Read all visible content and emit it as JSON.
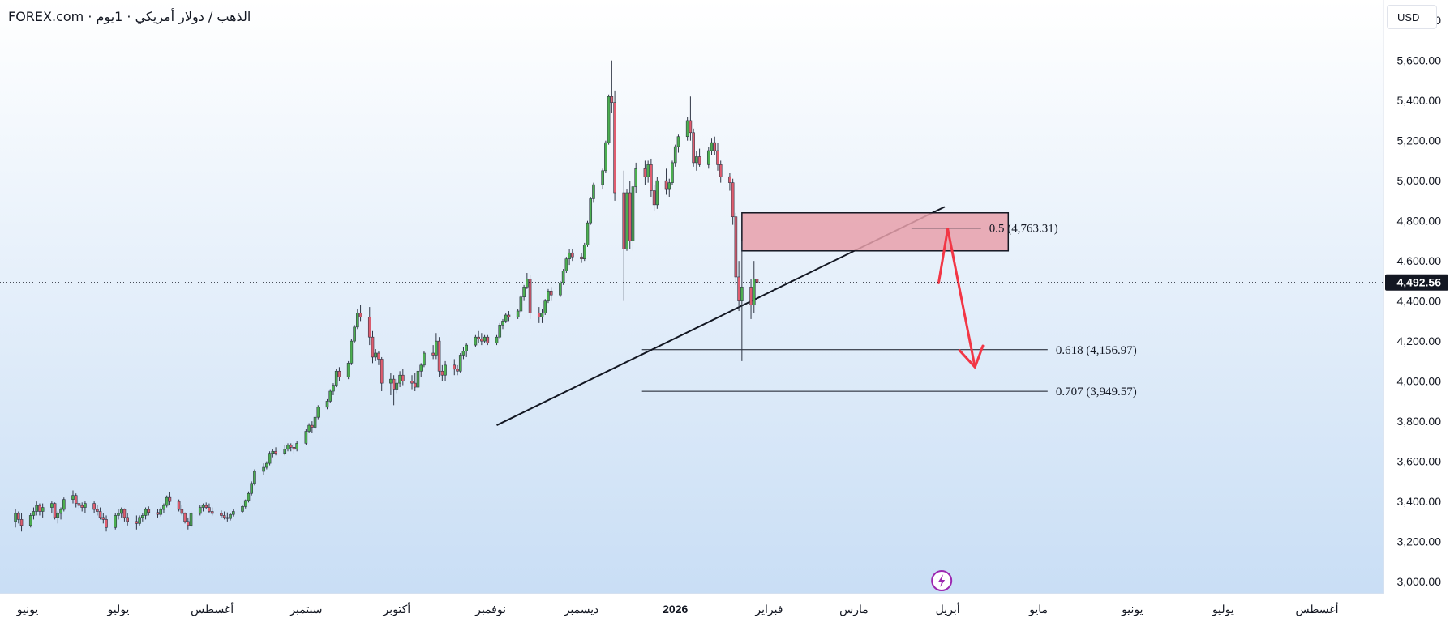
{
  "header": {
    "brand": "FOREX.com",
    "separator": " · ",
    "instrument": "الذهب / دولار أمريكي · 1يوم"
  },
  "currency_button": {
    "label": "USD"
  },
  "colors": {
    "up": "#4caf50",
    "down": "#e05d6f",
    "wick": "#2f3645",
    "zone_fill": "#e8a0aa",
    "arrow": "#f23645",
    "event_icon": "#9c27b0",
    "last_price_bg": "#131722"
  },
  "chart_data": {
    "type": "candlestick",
    "currency": "USD",
    "ylim": [
      2960,
      5720
    ],
    "y_ticks": [
      3000,
      3200,
      3400,
      3600,
      3800,
      4000,
      4200,
      4400,
      4600,
      4800,
      5000,
      5200,
      5400,
      5600
    ],
    "y_tick_labels": [
      "3,000.00",
      "3,200.00",
      "3,400.00",
      "3,600.00",
      "3,800.00",
      "4,000.00",
      "4,200.00",
      "4,400.00",
      "4,600.00",
      "4,800.00",
      "5,000.00",
      "5,200.00",
      "5,400.00",
      "5,600.00"
    ],
    "top_partial_tick": {
      "value": 5800,
      "label": "5,800.00"
    },
    "x_labels": [
      {
        "text": "يونيو",
        "date": "2025-06-01"
      },
      {
        "text": "يوليو",
        "date": "2025-07-01"
      },
      {
        "text": "أغسطس",
        "date": "2025-08-01"
      },
      {
        "text": "سبتمبر",
        "date": "2025-09-01"
      },
      {
        "text": "أكتوبر",
        "date": "2025-10-01"
      },
      {
        "text": "نوفمبر",
        "date": "2025-11-01"
      },
      {
        "text": "ديسمبر",
        "date": "2025-12-01"
      },
      {
        "text": "2026",
        "date": "2026-01-01",
        "bold": true
      },
      {
        "text": "فبراير",
        "date": "2026-02-01"
      },
      {
        "text": "مارس",
        "date": "2026-03-01"
      },
      {
        "text": "أبريل",
        "date": "2026-04-01"
      },
      {
        "text": "مايو",
        "date": "2026-05-01"
      },
      {
        "text": "يونيو",
        "date": "2026-06-01"
      },
      {
        "text": "يوليو",
        "date": "2026-07-01"
      },
      {
        "text": "أغسطس",
        "date": "2026-08-01"
      }
    ],
    "last_price": {
      "value": 4492.56,
      "label": "4,492.56"
    },
    "candles_start": "2025-05-28",
    "candles": [
      [
        3300,
        3360,
        3270,
        3340
      ],
      [
        3340,
        3350,
        3290,
        3310
      ],
      [
        3310,
        3340,
        3250,
        3280
      ],
      [
        3280,
        3340,
        3270,
        3330
      ],
      [
        3330,
        3370,
        3310,
        3350
      ],
      [
        3350,
        3400,
        3330,
        3380
      ],
      [
        3380,
        3390,
        3330,
        3350
      ],
      [
        3350,
        3390,
        3320,
        3370
      ],
      [
        3370,
        3400,
        3340,
        3390
      ],
      [
        3390,
        3395,
        3310,
        3320
      ],
      [
        3320,
        3350,
        3290,
        3340
      ],
      [
        3340,
        3370,
        3310,
        3360
      ],
      [
        3360,
        3420,
        3350,
        3410
      ],
      [
        3410,
        3455,
        3390,
        3430
      ],
      [
        3430,
        3440,
        3370,
        3390
      ],
      [
        3390,
        3400,
        3360,
        3380
      ],
      [
        3380,
        3395,
        3350,
        3370
      ],
      [
        3370,
        3400,
        3340,
        3390
      ],
      [
        3390,
        3400,
        3340,
        3360
      ],
      [
        3360,
        3380,
        3330,
        3350
      ],
      [
        3350,
        3370,
        3310,
        3320
      ],
      [
        3320,
        3340,
        3290,
        3310
      ],
      [
        3310,
        3330,
        3250,
        3270
      ],
      [
        3270,
        3340,
        3260,
        3330
      ],
      [
        3330,
        3360,
        3310,
        3340
      ],
      [
        3340,
        3370,
        3320,
        3360
      ],
      [
        3360,
        3365,
        3300,
        3320
      ],
      [
        3320,
        3340,
        3280,
        3300
      ],
      [
        3300,
        3330,
        3260,
        3290
      ],
      [
        3290,
        3330,
        3280,
        3320
      ],
      [
        3320,
        3340,
        3300,
        3330
      ],
      [
        3330,
        3370,
        3310,
        3360
      ],
      [
        3360,
        3375,
        3330,
        3345
      ],
      [
        3345,
        3360,
        3320,
        3335
      ],
      [
        3335,
        3370,
        3325,
        3360
      ],
      [
        3360,
        3390,
        3340,
        3380
      ],
      [
        3380,
        3430,
        3370,
        3420
      ],
      [
        3420,
        3445,
        3380,
        3400
      ],
      [
        3400,
        3410,
        3350,
        3360
      ],
      [
        3360,
        3380,
        3330,
        3340
      ],
      [
        3340,
        3345,
        3290,
        3300
      ],
      [
        3300,
        3320,
        3260,
        3280
      ],
      [
        3280,
        3350,
        3270,
        3340
      ],
      [
        3340,
        3380,
        3330,
        3370
      ],
      [
        3370,
        3390,
        3350,
        3380
      ],
      [
        3380,
        3395,
        3360,
        3370
      ],
      [
        3370,
        3390,
        3340,
        3350
      ],
      [
        3350,
        3370,
        3330,
        3340
      ],
      [
        3340,
        3355,
        3320,
        3330
      ],
      [
        3330,
        3350,
        3310,
        3320
      ],
      [
        3320,
        3345,
        3300,
        3315
      ],
      [
        3315,
        3340,
        3305,
        3335
      ],
      [
        3335,
        3360,
        3325,
        3350
      ],
      [
        3350,
        3380,
        3340,
        3375
      ],
      [
        3375,
        3410,
        3365,
        3405
      ],
      [
        3405,
        3450,
        3395,
        3440
      ],
      [
        3440,
        3500,
        3430,
        3490
      ],
      [
        3490,
        3560,
        3480,
        3550
      ],
      [
        3550,
        3590,
        3530,
        3570
      ],
      [
        3570,
        3600,
        3560,
        3590
      ],
      [
        3590,
        3650,
        3580,
        3640
      ],
      [
        3640,
        3660,
        3620,
        3650
      ],
      [
        3650,
        3670,
        3630,
        3640
      ],
      [
        3640,
        3680,
        3630,
        3660
      ],
      [
        3660,
        3690,
        3650,
        3680
      ],
      [
        3680,
        3690,
        3650,
        3670
      ],
      [
        3670,
        3690,
        3640,
        3660
      ],
      [
        3660,
        3700,
        3650,
        3690
      ],
      [
        3690,
        3760,
        3680,
        3750
      ],
      [
        3750,
        3790,
        3740,
        3780
      ],
      [
        3780,
        3800,
        3740,
        3770
      ],
      [
        3770,
        3830,
        3760,
        3820
      ],
      [
        3820,
        3880,
        3810,
        3870
      ],
      [
        3870,
        3910,
        3860,
        3900
      ],
      [
        3900,
        3960,
        3890,
        3950
      ],
      [
        3950,
        3990,
        3930,
        3980
      ],
      [
        3980,
        4060,
        3970,
        4050
      ],
      [
        4050,
        4070,
        4000,
        4020
      ],
      [
        4020,
        4100,
        4010,
        4090
      ],
      [
        4090,
        4210,
        4080,
        4200
      ],
      [
        4200,
        4280,
        4190,
        4270
      ],
      [
        4270,
        4360,
        4260,
        4340
      ],
      [
        4340,
        4380,
        4300,
        4320
      ],
      [
        4320,
        4370,
        4180,
        4220
      ],
      [
        4220,
        4250,
        4090,
        4120
      ],
      [
        4120,
        4160,
        4100,
        4140
      ],
      [
        4140,
        4150,
        4080,
        4110
      ],
      [
        4110,
        4120,
        3950,
        3990
      ],
      [
        3990,
        4040,
        3930,
        4010
      ],
      [
        4010,
        4030,
        3880,
        3960
      ],
      [
        3960,
        4010,
        3940,
        3990
      ],
      [
        3990,
        4050,
        3970,
        4030
      ],
      [
        4030,
        4060,
        3980,
        4000
      ],
      [
        4000,
        4030,
        3960,
        3990
      ],
      [
        3990,
        4040,
        3950,
        3970
      ],
      [
        3970,
        4060,
        3960,
        4050
      ],
      [
        4050,
        4090,
        4020,
        4080
      ],
      [
        4080,
        4150,
        4070,
        4140
      ],
      [
        4140,
        4180,
        4110,
        4130
      ],
      [
        4130,
        4240,
        4110,
        4200
      ],
      [
        4200,
        4220,
        4020,
        4050
      ],
      [
        4050,
        4080,
        4000,
        4030
      ],
      [
        4030,
        4100,
        4000,
        4080
      ],
      [
        4080,
        4110,
        4030,
        4060
      ],
      [
        4060,
        4080,
        4030,
        4050
      ],
      [
        4050,
        4140,
        4040,
        4130
      ],
      [
        4130,
        4170,
        4110,
        4150
      ],
      [
        4150,
        4190,
        4120,
        4180
      ],
      [
        4180,
        4230,
        4170,
        4220
      ],
      [
        4220,
        4250,
        4190,
        4210
      ],
      [
        4210,
        4240,
        4180,
        4200
      ],
      [
        4200,
        4230,
        4190,
        4220
      ],
      [
        4220,
        4230,
        4180,
        4190
      ],
      [
        4190,
        4230,
        4180,
        4220
      ],
      [
        4220,
        4290,
        4210,
        4280
      ],
      [
        4280,
        4310,
        4260,
        4300
      ],
      [
        4300,
        4340,
        4290,
        4330
      ],
      [
        4330,
        4350,
        4300,
        4320
      ],
      [
        4320,
        4360,
        4310,
        4350
      ],
      [
        4350,
        4430,
        4340,
        4420
      ],
      [
        4420,
        4480,
        4400,
        4470
      ],
      [
        4470,
        4540,
        4460,
        4510
      ],
      [
        4510,
        4530,
        4310,
        4340
      ],
      [
        4340,
        4370,
        4290,
        4320
      ],
      [
        4320,
        4360,
        4290,
        4340
      ],
      [
        4340,
        4410,
        4330,
        4400
      ],
      [
        4400,
        4460,
        4390,
        4450
      ],
      [
        4450,
        4470,
        4400,
        4430
      ],
      [
        4430,
        4500,
        4420,
        4490
      ],
      [
        4490,
        4560,
        4480,
        4550
      ],
      [
        4550,
        4620,
        4540,
        4610
      ],
      [
        4610,
        4660,
        4580,
        4640
      ],
      [
        4640,
        4660,
        4600,
        4620
      ],
      [
        4620,
        4640,
        4590,
        4610
      ],
      [
        4610,
        4690,
        4600,
        4680
      ],
      [
        4680,
        4800,
        4670,
        4790
      ],
      [
        4790,
        4920,
        4780,
        4910
      ],
      [
        4910,
        4990,
        4890,
        4980
      ],
      [
        4980,
        5060,
        4960,
        5050
      ],
      [
        5050,
        5200,
        5040,
        5190
      ],
      [
        5190,
        5430,
        5180,
        5420
      ],
      [
        5420,
        5600,
        5340,
        5390
      ],
      [
        5390,
        5450,
        4900,
        4940
      ],
      [
        4940,
        5050,
        4400,
        4660
      ],
      [
        4660,
        4960,
        4650,
        4940
      ],
      [
        4940,
        5000,
        4660,
        4700
      ],
      [
        4700,
        4990,
        4650,
        4970
      ],
      [
        4970,
        5090,
        4940,
        5060
      ],
      [
        5060,
        5100,
        4980,
        5020
      ],
      [
        5020,
        5100,
        4990,
        5080
      ],
      [
        5080,
        5110,
        4920,
        4950
      ],
      [
        4950,
        4980,
        4850,
        4880
      ],
      [
        4880,
        5020,
        4860,
        5000
      ],
      [
        5000,
        5060,
        4930,
        4960
      ],
      [
        4960,
        5010,
        4920,
        4990
      ],
      [
        4990,
        5100,
        4980,
        5090
      ],
      [
        5090,
        5180,
        5070,
        5170
      ],
      [
        5170,
        5230,
        5140,
        5220
      ],
      [
        5220,
        5320,
        5200,
        5300
      ],
      [
        5300,
        5420,
        5200,
        5240
      ],
      [
        5240,
        5260,
        5070,
        5090
      ],
      [
        5090,
        5150,
        5050,
        5120
      ],
      [
        5120,
        5160,
        5070,
        5080
      ],
      [
        5080,
        5170,
        5060,
        5150
      ],
      [
        5150,
        5210,
        5130,
        5190
      ],
      [
        5190,
        5220,
        5130,
        5150
      ],
      [
        5150,
        5190,
        5050,
        5080
      ],
      [
        5080,
        5100,
        4990,
        5020
      ],
      [
        5020,
        5040,
        4950,
        4990
      ],
      [
        4990,
        5010,
        4780,
        4820
      ],
      [
        4820,
        4840,
        4480,
        4520
      ],
      [
        4520,
        4600,
        4350,
        4400
      ],
      [
        4400,
        4700,
        4100,
        4470
      ],
      [
        4470,
        4510,
        4310,
        4380
      ],
      [
        4380,
        4600,
        4340,
        4510
      ],
      [
        4510,
        4530,
        4380,
        4492.56
      ]
    ],
    "trendline": {
      "from": [
        "2025-11-03",
        3780
      ],
      "to": [
        "2026-03-31",
        4870
      ]
    },
    "resistance_zone": {
      "x_start": "2026-01-23",
      "x_end": "2026-04-21",
      "y_bottom": 4650,
      "y_top": 4840
    },
    "fib_levels": [
      {
        "value": 4763.31,
        "label": "0.5 (4,763.31)",
        "x_start": "2026-03-20",
        "x_end": "2026-04-12"
      },
      {
        "value": 4156.97,
        "label": "0.618 (4,156.97)",
        "x_start": "2025-12-21",
        "x_end": "2026-05-04"
      },
      {
        "value": 3949.57,
        "label": "0.707 (3,949.57)",
        "x_start": "2025-12-21",
        "x_end": "2026-05-04"
      }
    ],
    "projection_arrow": {
      "points": [
        [
          "2026-03-29",
          4490
        ],
        [
          "2026-04-01",
          4760
        ],
        [
          "2026-04-10",
          4070
        ]
      ]
    },
    "event_marker_date": "2026-03-30"
  }
}
